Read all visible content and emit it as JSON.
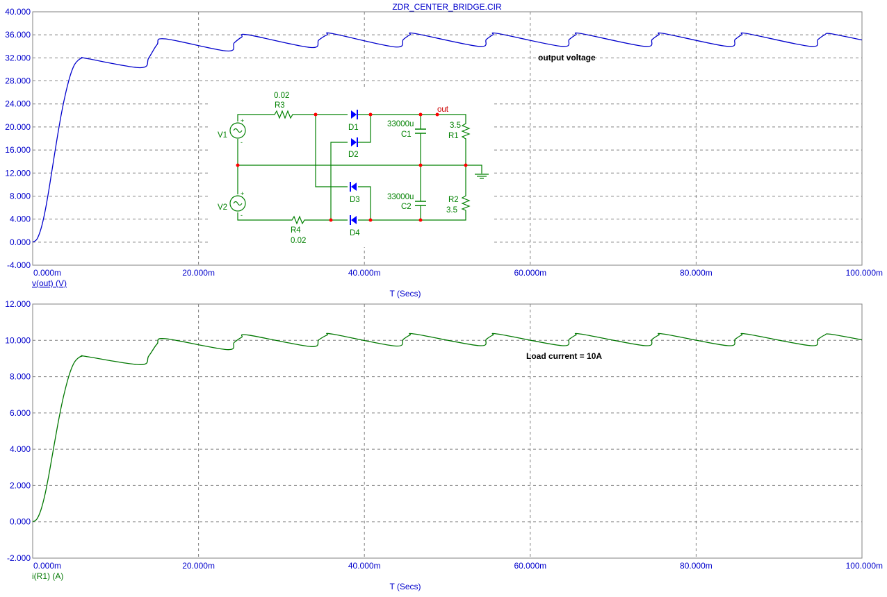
{
  "window_title": "ZDR_CENTER_BRIDGE.CIR",
  "colors": {
    "plot1": "#0000cc",
    "plot2": "#007700",
    "grid": "#808080",
    "schematic": "#008000",
    "node": "#ff0000",
    "diode": "#0000ff"
  },
  "chart_data": [
    {
      "type": "line",
      "title": "ZDR_CENTER_BRIDGE.CIR",
      "ylabel": "v(out) (V)",
      "xlabel": "T (Secs)",
      "x_unit": "ms",
      "xlim": [
        0,
        100
      ],
      "ylim": [
        -4,
        40
      ],
      "x_ticks": [
        "0.000m",
        "20.000m",
        "40.000m",
        "60.000m",
        "80.000m",
        "100.000m"
      ],
      "y_ticks": [
        "40.000",
        "36.000",
        "32.000",
        "28.000",
        "24.000",
        "20.000",
        "16.000",
        "12.000",
        "8.000",
        "4.000",
        "0.000",
        "-4.000"
      ],
      "grid": true,
      "annotation": "output voltage",
      "series": [
        {
          "name": "v(out)",
          "color": "#0000cc",
          "x": [
            0,
            0.5,
            1,
            1.5,
            2,
            2.5,
            3,
            3.5,
            4,
            4.5,
            5,
            5.5,
            6,
            6.5,
            13,
            14,
            15,
            16,
            23.4,
            24.3,
            25.2,
            26,
            33.5,
            34.5,
            35.5,
            36.2,
            43.7,
            44.7,
            45.5,
            46.2,
            53.8,
            54.7,
            55.5,
            56.2,
            63.8,
            64.7,
            65.5,
            66.2,
            73.8,
            74.7,
            75.5,
            76.2,
            83.8,
            84.7,
            85.5,
            86.2,
            93.8,
            94.7,
            95.5,
            96.2,
            100
          ],
          "values": [
            0,
            0.5,
            2.3,
            5.4,
            9.5,
            14,
            18.5,
            22.6,
            26,
            28.8,
            30.7,
            31.6,
            32,
            31.9,
            30.3,
            32,
            34.3,
            35.3,
            33.2,
            34.6,
            35.6,
            36,
            33.8,
            35.1,
            36,
            36.2,
            33.9,
            35.2,
            36,
            36.2,
            34,
            35.2,
            36,
            36.2,
            34,
            35.2,
            36,
            36.2,
            34,
            35.2,
            36,
            36.2,
            34,
            35.2,
            36,
            36.2,
            34,
            35.2,
            36,
            36.2,
            35.1
          ]
        }
      ]
    },
    {
      "type": "line",
      "ylabel": "i(R1) (A)",
      "xlabel": "T (Secs)",
      "x_unit": "ms",
      "xlim": [
        0,
        100
      ],
      "ylim": [
        -2,
        12
      ],
      "x_ticks": [
        "0.000m",
        "20.000m",
        "40.000m",
        "60.000m",
        "80.000m",
        "100.000m"
      ],
      "y_ticks": [
        "12.000",
        "10.000",
        "8.000",
        "6.000",
        "4.000",
        "2.000",
        "0.000",
        "-2.000"
      ],
      "grid": true,
      "annotation": "Load current = 10A",
      "series": [
        {
          "name": "i(R1)",
          "color": "#007700",
          "x": [
            0,
            0.5,
            1,
            1.5,
            2,
            2.5,
            3,
            3.5,
            4,
            4.5,
            5,
            5.5,
            6,
            6.5,
            13,
            14,
            15,
            16,
            23.4,
            24.3,
            25.2,
            26,
            33.5,
            34.5,
            35.5,
            36.2,
            43.7,
            44.7,
            45.5,
            46.2,
            53.8,
            54.7,
            55.5,
            56.2,
            63.8,
            64.7,
            65.5,
            66.2,
            73.8,
            74.7,
            75.5,
            76.2,
            83.8,
            84.7,
            85.5,
            86.2,
            93.8,
            94.7,
            95.5,
            96.2,
            100
          ],
          "values": [
            0,
            0.15,
            0.66,
            1.54,
            2.71,
            4,
            5.29,
            6.46,
            7.43,
            8.23,
            8.77,
            9.03,
            9.14,
            9.11,
            8.66,
            9.14,
            9.8,
            10.09,
            9.49,
            9.89,
            10.17,
            10.29,
            9.66,
            10.03,
            10.29,
            10.34,
            9.69,
            10.06,
            10.29,
            10.34,
            9.71,
            10.06,
            10.29,
            10.34,
            9.71,
            10.06,
            10.29,
            10.34,
            9.71,
            10.06,
            10.29,
            10.34,
            9.71,
            10.06,
            10.29,
            10.34,
            9.71,
            10.06,
            10.29,
            10.34,
            10.03
          ]
        }
      ]
    }
  ],
  "schematic": {
    "R3": {
      "name": "R3",
      "value": "0.02"
    },
    "R4": {
      "name": "R4",
      "value": "0.02"
    },
    "R1": {
      "name": "R1",
      "value": "3.5"
    },
    "R2": {
      "name": "R2",
      "value": "3.5"
    },
    "C1": {
      "name": "C1",
      "value": "33000u"
    },
    "C2": {
      "name": "C2",
      "value": "33000u"
    },
    "V1": "V1",
    "V2": "V2",
    "D1": "D1",
    "D2": "D2",
    "D3": "D3",
    "D4": "D4",
    "out_label": "out",
    "plus": "+",
    "minus": "-"
  }
}
